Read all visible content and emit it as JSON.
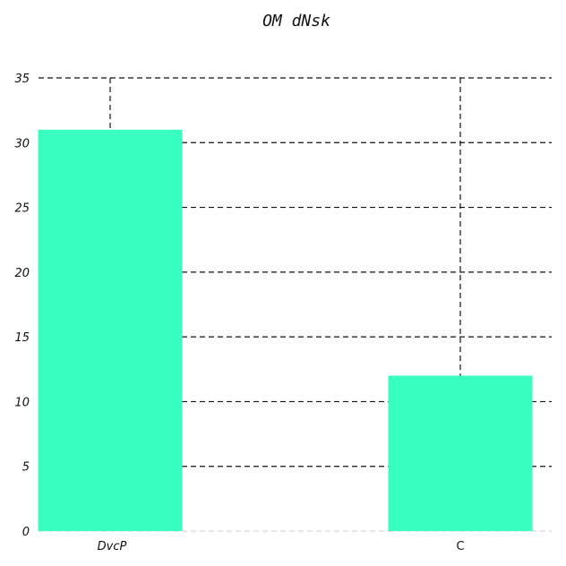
{
  "chart_data": {
    "type": "bar",
    "title": "OM dNsk",
    "xlabel": "",
    "ylabel": "",
    "categories": [
      "DvcP",
      "C"
    ],
    "values": [
      31,
      12
    ],
    "ylim": [
      0,
      35
    ],
    "yticks": [
      0,
      5,
      10,
      15,
      20,
      25,
      30,
      35
    ],
    "grid": "horizontal dashed",
    "bar_color": "#38ffbf",
    "grid_color": "#111111",
    "legend": "none"
  }
}
